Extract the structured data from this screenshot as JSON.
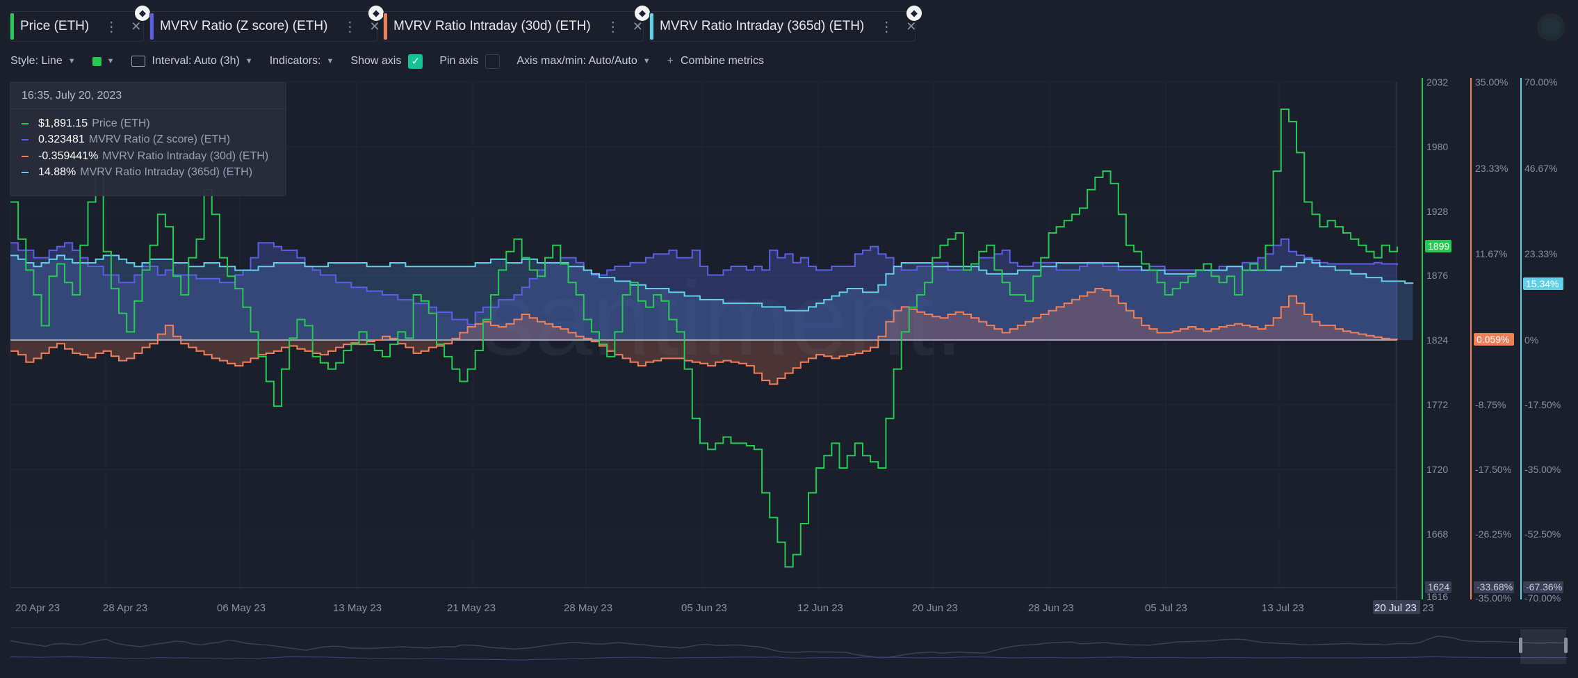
{
  "tabs": [
    {
      "label": "Price (ETH)",
      "color": "#26c953",
      "active": true
    },
    {
      "label": "MVRV Ratio (Z score) (ETH)",
      "color": "#5b5fe8",
      "active": false
    },
    {
      "label": "MVRV Ratio Intraday (30d) (ETH)",
      "color": "#f0805a",
      "active": false
    },
    {
      "label": "MVRV Ratio Intraday (365d) (ETH)",
      "color": "#5fd0e6",
      "active": false
    }
  ],
  "toolbar": {
    "style": "Style: Line",
    "interval": "Interval: Auto (3h)",
    "indicators": "Indicators:",
    "show_axis": "Show axis",
    "pin_axis": "Pin axis",
    "axis_maxmin": "Axis max/min: Auto/Auto",
    "combine": "Combine metrics"
  },
  "legend": {
    "date": "16:35, July 20, 2023",
    "rows": [
      {
        "value": "$1,891.15",
        "name": "Price (ETH)",
        "color": "#26c953"
      },
      {
        "value": "0.323481",
        "name": "MVRV Ratio (Z score) (ETH)",
        "color": "#5b5fe8"
      },
      {
        "value": "-0.359441%",
        "name": "MVRV Ratio Intraday (30d) (ETH)",
        "color": "#f0805a"
      },
      {
        "value": "14.88%",
        "name": "MVRV Ratio Intraday (365d) (ETH)",
        "color": "#5fd0e6"
      }
    ]
  },
  "watermark": "santiment.",
  "chart_data": {
    "type": "line",
    "x_ticks": [
      "20 Apr 23",
      "28 Apr 23",
      "06 May 23",
      "13 May 23",
      "21 May 23",
      "28 May 23",
      "05 Jun 23",
      "12 Jun 23",
      "20 Jun 23",
      "28 Jun 23",
      "05 Jul 23",
      "13 Jul 23",
      "20 Jul 23"
    ],
    "x_hidden_suffix": "23",
    "axes": {
      "price": {
        "ticks": [
          "2032",
          "1980",
          "1928",
          "1876",
          "1824",
          "1772",
          "1720",
          "1668",
          "1616"
        ],
        "current_label": "1899",
        "min_label": "1624",
        "color": "#26c953"
      },
      "mvrv30": {
        "ticks": [
          "35.00%",
          "23.33%",
          "11.67%",
          "0%",
          "-8.75%",
          "-17.50%",
          "-26.25%",
          "-35.00%"
        ],
        "current_label": "0.059%",
        "min_label": "-33.68%",
        "color": "#f0805a"
      },
      "mvrv365": {
        "ticks": [
          "70.00%",
          "46.67%",
          "23.33%",
          "0%",
          "-17.50%",
          "-35.00%",
          "-52.50%",
          "-70.00%"
        ],
        "current_label": "15.34%",
        "min_label": "-67.36%",
        "color": "#5fd0e6"
      }
    },
    "series": [
      {
        "name": "Price (ETH)",
        "color": "#26c953",
        "values": [
          1935,
          1905,
          1880,
          1860,
          1835,
          1875,
          1885,
          1870,
          1860,
          1900,
          1935,
          1960,
          1895,
          1865,
          1845,
          1830,
          1855,
          1880,
          1900,
          1925,
          1915,
          1875,
          1860,
          1890,
          1905,
          1945,
          1925,
          1890,
          1875,
          1865,
          1850,
          1830,
          1810,
          1790,
          1770,
          1800,
          1825,
          1840,
          1835,
          1810,
          1805,
          1800,
          1805,
          1815,
          1820,
          1830,
          1820,
          1815,
          1810,
          1820,
          1830,
          1825,
          1860,
          1855,
          1845,
          1820,
          1810,
          1800,
          1790,
          1800,
          1815,
          1840,
          1860,
          1880,
          1895,
          1905,
          1890,
          1880,
          1875,
          1890,
          1900,
          1885,
          1870,
          1860,
          1840,
          1830,
          1820,
          1810,
          1830,
          1860,
          1870,
          1855,
          1850,
          1860,
          1855,
          1840,
          1830,
          1800,
          1760,
          1740,
          1735,
          1740,
          1745,
          1740,
          1740,
          1738,
          1735,
          1700,
          1680,
          1660,
          1640,
          1650,
          1675,
          1700,
          1720,
          1730,
          1740,
          1720,
          1730,
          1740,
          1730,
          1725,
          1720,
          1760,
          1800,
          1830,
          1850,
          1860,
          1870,
          1890,
          1900,
          1905,
          1910,
          1880,
          1885,
          1895,
          1900,
          1880,
          1870,
          1860,
          1860,
          1855,
          1875,
          1890,
          1910,
          1915,
          1920,
          1925,
          1930,
          1945,
          1955,
          1960,
          1950,
          1925,
          1900,
          1895,
          1885,
          1880,
          1870,
          1860,
          1865,
          1870,
          1875,
          1880,
          1885,
          1875,
          1870,
          1875,
          1860,
          1880,
          1885,
          1880,
          1900,
          1960,
          2010,
          2000,
          1975,
          1935,
          1925,
          1915,
          1920,
          1915,
          1910,
          1905,
          1900,
          1895,
          1890,
          1900,
          1895,
          1899
        ]
      },
      {
        "name": "MVRV Ratio (Z score) (ETH)",
        "color": "#5b5fe8",
        "values": [
          1902,
          1896,
          1896,
          1890,
          1890,
          1896,
          1899,
          1902,
          1896,
          1890,
          1883,
          1883,
          1876,
          1876,
          1870,
          1870,
          1876,
          1883,
          1883,
          1876,
          1880,
          1876,
          1876,
          1876,
          1873,
          1873,
          1873,
          1870,
          1870,
          1876,
          1880,
          1890,
          1902,
          1902,
          1899,
          1896,
          1896,
          1890,
          1883,
          1880,
          1876,
          1876,
          1870,
          1870,
          1866,
          1866,
          1863,
          1863,
          1860,
          1860,
          1856,
          1856,
          1853,
          1853,
          1850,
          1846,
          1846,
          1840,
          1840,
          1836,
          1846,
          1850,
          1850,
          1856,
          1856,
          1860,
          1866,
          1873,
          1880,
          1886,
          1886,
          1890,
          1890,
          1886,
          1880,
          1876,
          1876,
          1880,
          1883,
          1883,
          1886,
          1886,
          1890,
          1893,
          1893,
          1896,
          1890,
          1890,
          1896,
          1883,
          1876,
          1876,
          1880,
          1883,
          1883,
          1880,
          1883,
          1880,
          1896,
          1890,
          1893,
          1886,
          1890,
          1883,
          1880,
          1880,
          1883,
          1883,
          1883,
          1893,
          1896,
          1899,
          1893,
          1890,
          1883,
          1880,
          1880,
          1883,
          1883,
          1886,
          1886,
          1880,
          1880,
          1880,
          1883,
          1890,
          1890,
          1893,
          1896,
          1886,
          1883,
          1883,
          1886,
          1886,
          1886,
          1880,
          1880,
          1880,
          1883,
          1886,
          1886,
          1883,
          1883,
          1880,
          1880,
          1880,
          1880,
          1883,
          1883,
          1880,
          1880,
          1880,
          1880,
          1880,
          1880,
          1880,
          1883,
          1883,
          1883,
          1886,
          1886,
          1890,
          1893,
          1900,
          1905,
          1895,
          1892,
          1890,
          1888,
          1886,
          1885,
          1885,
          1885,
          1885,
          1885,
          1885,
          1886,
          1885,
          1885,
          1884
        ]
      },
      {
        "name": "MVRV Ratio Intraday (30d) (ETH)",
        "color": "#f0805a",
        "values": [
          -1.5,
          -2.0,
          -3.0,
          -2.5,
          -1.8,
          -1.0,
          -0.5,
          -1.2,
          -1.8,
          -2.0,
          -2.4,
          -1.8,
          -1.5,
          -2.2,
          -2.8,
          -2.5,
          -1.8,
          -1.0,
          -0.5,
          0.8,
          2.0,
          0.5,
          -0.5,
          -1.0,
          -1.5,
          -2.0,
          -2.5,
          -2.8,
          -3.2,
          -3.5,
          -3.0,
          -2.5,
          -2.0,
          -1.8,
          -1.5,
          -1.0,
          -0.8,
          -1.2,
          -1.5,
          -1.8,
          -2.0,
          -1.5,
          -1.0,
          -0.6,
          -0.4,
          -0.6,
          -0.2,
          0.0,
          0.5,
          0.2,
          -0.5,
          -1.0,
          -1.8,
          -1.5,
          -1.0,
          -0.8,
          -0.5,
          0.2,
          1.0,
          1.8,
          2.2,
          2.5,
          2.0,
          1.8,
          2.2,
          2.8,
          3.5,
          3.0,
          2.5,
          2.2,
          1.8,
          1.5,
          1.0,
          0.5,
          0.2,
          -0.2,
          -0.8,
          -1.5,
          -2.0,
          -2.5,
          -3.0,
          -3.5,
          -3.0,
          -2.8,
          -2.5,
          -2.5,
          -2.5,
          -2.8,
          -3.0,
          -3.2,
          -3.5,
          -3.0,
          -2.8,
          -3.0,
          -3.2,
          -3.5,
          -4.5,
          -5.5,
          -6.0,
          -5.2,
          -4.5,
          -3.8,
          -3.0,
          -2.5,
          -2.0,
          -2.2,
          -2.5,
          -2.2,
          -2.0,
          -1.8,
          -1.5,
          -1.0,
          0.5,
          2.5,
          4.0,
          4.5,
          4.2,
          3.8,
          3.5,
          3.2,
          3.0,
          3.5,
          3.8,
          3.5,
          3.0,
          2.5,
          2.0,
          1.5,
          1.0,
          1.5,
          2.0,
          2.5,
          3.0,
          3.5,
          4.0,
          4.5,
          5.0,
          5.5,
          6.0,
          6.5,
          7.0,
          6.8,
          6.0,
          5.0,
          4.0,
          3.0,
          2.0,
          1.5,
          1.0,
          1.0,
          1.2,
          1.5,
          1.8,
          1.5,
          1.2,
          1.5,
          1.8,
          2.0,
          2.2,
          2.0,
          1.8,
          1.5,
          2.0,
          3.0,
          4.5,
          6.0,
          5.0,
          3.5,
          2.5,
          2.0,
          2.0,
          1.5,
          1.2,
          1.0,
          0.8,
          0.6,
          0.4,
          0.2,
          0.1,
          0.06
        ]
      },
      {
        "name": "MVRV Ratio Intraday (365d) (ETH)",
        "color": "#5fd0e6",
        "values": [
          23,
          22,
          21,
          20,
          21,
          22,
          23,
          22,
          21,
          21,
          21,
          22,
          23,
          23,
          22,
          21,
          20,
          21,
          22,
          22,
          22,
          21,
          21,
          20,
          20,
          21,
          21,
          20,
          20,
          19,
          19,
          19,
          20,
          20,
          21,
          21,
          21,
          21,
          20,
          20,
          20,
          21,
          21,
          21,
          21,
          21,
          20,
          20,
          20,
          21,
          21,
          20,
          20,
          20,
          20,
          20,
          20,
          20,
          20,
          20,
          21,
          21,
          22,
          22,
          21,
          21,
          22,
          22,
          21,
          21,
          21,
          21,
          20,
          20,
          19,
          18,
          17,
          17,
          16,
          16,
          15,
          15,
          14,
          14,
          14,
          13,
          13,
          12,
          12,
          11,
          11,
          11,
          10,
          10,
          10,
          10,
          10,
          9,
          9,
          9,
          8,
          8,
          8,
          9,
          10,
          11,
          12,
          13,
          14,
          14,
          13,
          13,
          15,
          18,
          20,
          21,
          21,
          21,
          21,
          20,
          20,
          20,
          20,
          20,
          20,
          19,
          18,
          18,
          18,
          18,
          19,
          19,
          19,
          20,
          20,
          21,
          21,
          21,
          21,
          21,
          21,
          21,
          21,
          20,
          20,
          20,
          19,
          19,
          19,
          18,
          18,
          18,
          18,
          19,
          19,
          19,
          19,
          20,
          20,
          19,
          19,
          19,
          19,
          19,
          20,
          20,
          21,
          22,
          21,
          20,
          20,
          19,
          19,
          18,
          18,
          17,
          17,
          16,
          16,
          16,
          15.5,
          15.34
        ]
      }
    ]
  }
}
